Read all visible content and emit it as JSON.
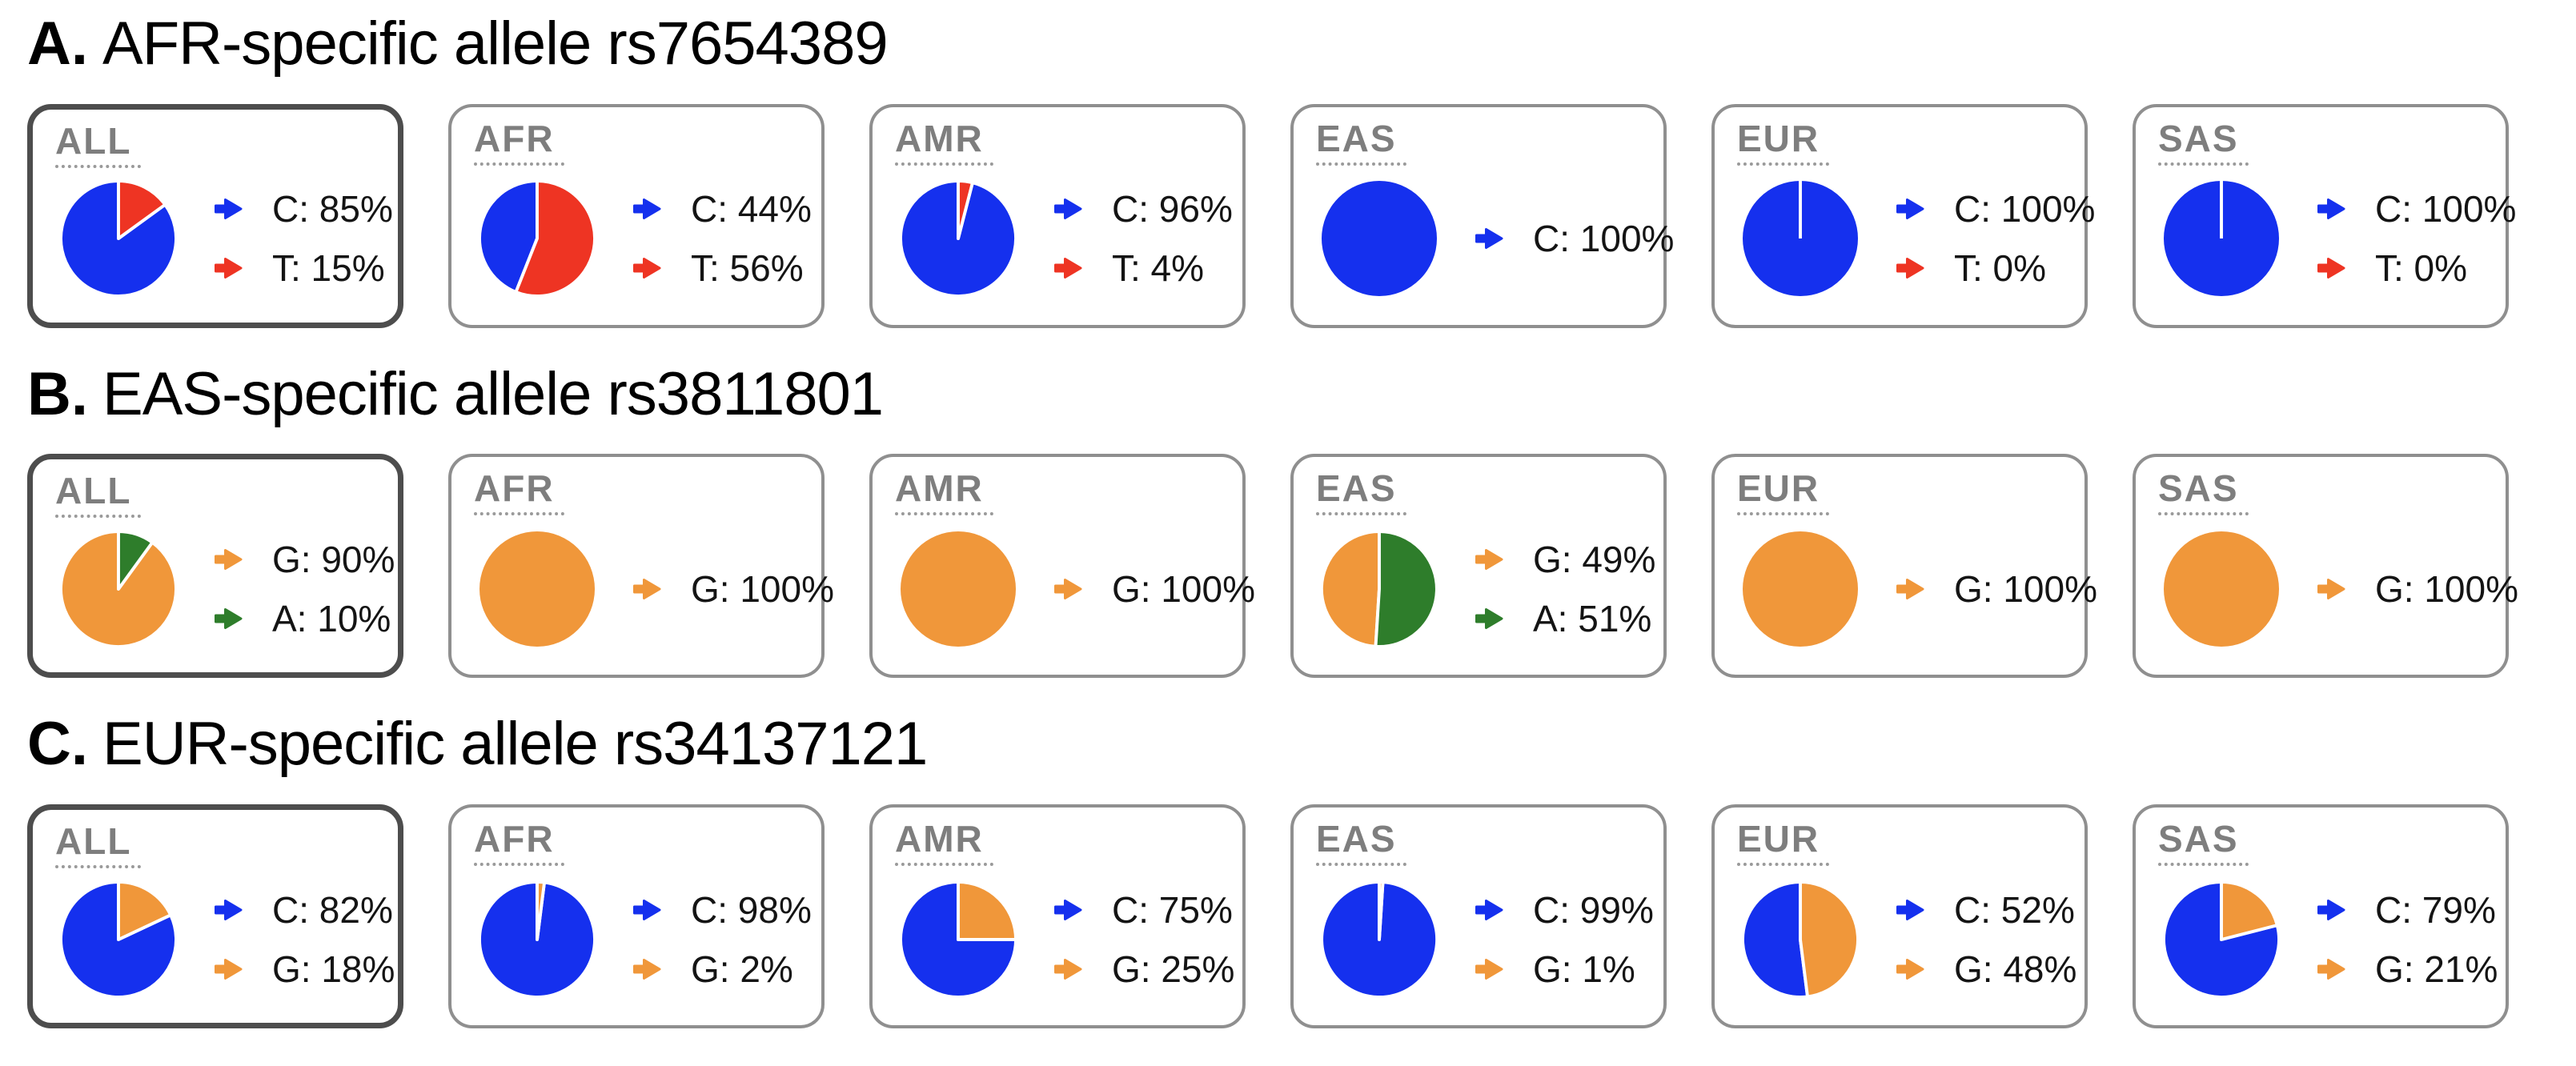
{
  "page": {
    "background": "#ffffff",
    "text_color": "#141414"
  },
  "styles": {
    "population_label_color": "#7e7e7e",
    "card_border_color": "#8f8f8f",
    "highlight_border_color": "#4d4d4d",
    "pie_edge_color": "#ffffff"
  },
  "chart_data": [
    {
      "type": "pie",
      "panel": "A.",
      "title": "AFR-specific allele rs7654389",
      "legend_position": "right",
      "pies": [
        {
          "population": "ALL",
          "highlighted": true,
          "slices": [
            {
              "allele": "C",
              "pct": 85,
              "color": "#1530ee",
              "label": "C: 85%"
            },
            {
              "allele": "T",
              "pct": 15,
              "color": "#ee3423",
              "label": "T: 15%"
            }
          ]
        },
        {
          "population": "AFR",
          "highlighted": false,
          "slices": [
            {
              "allele": "C",
              "pct": 44,
              "color": "#1530ee",
              "label": "C: 44%"
            },
            {
              "allele": "T",
              "pct": 56,
              "color": "#ee3423",
              "label": "T: 56%"
            }
          ]
        },
        {
          "population": "AMR",
          "highlighted": false,
          "slices": [
            {
              "allele": "C",
              "pct": 96,
              "color": "#1530ee",
              "label": "C: 96%"
            },
            {
              "allele": "T",
              "pct": 4,
              "color": "#ee3423",
              "label": "T: 4%"
            }
          ]
        },
        {
          "population": "EAS",
          "highlighted": false,
          "slices": [
            {
              "allele": "C",
              "pct": 100,
              "color": "#1530ee",
              "label": "C: 100%"
            }
          ]
        },
        {
          "population": "EUR",
          "highlighted": false,
          "slices": [
            {
              "allele": "C",
              "pct": 100,
              "color": "#1530ee",
              "label": "C: 100%"
            },
            {
              "allele": "T",
              "pct": 0,
              "color": "#ee3423",
              "label": "T: 0%"
            }
          ]
        },
        {
          "population": "SAS",
          "highlighted": false,
          "slices": [
            {
              "allele": "C",
              "pct": 100,
              "color": "#1530ee",
              "label": "C: 100%"
            },
            {
              "allele": "T",
              "pct": 0,
              "color": "#ee3423",
              "label": "T: 0%"
            }
          ]
        }
      ]
    },
    {
      "type": "pie",
      "panel": "B.",
      "title": "EAS-specific allele rs3811801",
      "legend_position": "right",
      "pies": [
        {
          "population": "ALL",
          "highlighted": true,
          "slices": [
            {
              "allele": "G",
              "pct": 90,
              "color": "#f0973a",
              "label": "G: 90%"
            },
            {
              "allele": "A",
              "pct": 10,
              "color": "#2e7d2b",
              "label": "A: 10%"
            }
          ]
        },
        {
          "population": "AFR",
          "highlighted": false,
          "slices": [
            {
              "allele": "G",
              "pct": 100,
              "color": "#f0973a",
              "label": "G: 100%"
            }
          ]
        },
        {
          "population": "AMR",
          "highlighted": false,
          "slices": [
            {
              "allele": "G",
              "pct": 100,
              "color": "#f0973a",
              "label": "G: 100%"
            }
          ]
        },
        {
          "population": "EAS",
          "highlighted": false,
          "slices": [
            {
              "allele": "G",
              "pct": 49,
              "color": "#f0973a",
              "label": "G: 49%"
            },
            {
              "allele": "A",
              "pct": 51,
              "color": "#2e7d2b",
              "label": "A: 51%"
            }
          ]
        },
        {
          "population": "EUR",
          "highlighted": false,
          "slices": [
            {
              "allele": "G",
              "pct": 100,
              "color": "#f0973a",
              "label": "G: 100%"
            }
          ]
        },
        {
          "population": "SAS",
          "highlighted": false,
          "slices": [
            {
              "allele": "G",
              "pct": 100,
              "color": "#f0973a",
              "label": "G: 100%"
            }
          ]
        }
      ]
    },
    {
      "type": "pie",
      "panel": "C.",
      "title": "EUR-specific allele rs34137121",
      "legend_position": "right",
      "pies": [
        {
          "population": "ALL",
          "highlighted": true,
          "slices": [
            {
              "allele": "C",
              "pct": 82,
              "color": "#1530ee",
              "label": "C: 82%"
            },
            {
              "allele": "G",
              "pct": 18,
              "color": "#f0973a",
              "label": "G: 18%"
            }
          ]
        },
        {
          "population": "AFR",
          "highlighted": false,
          "slices": [
            {
              "allele": "C",
              "pct": 98,
              "color": "#1530ee",
              "label": "C: 98%"
            },
            {
              "allele": "G",
              "pct": 2,
              "color": "#f0973a",
              "label": "G: 2%"
            }
          ]
        },
        {
          "population": "AMR",
          "highlighted": false,
          "slices": [
            {
              "allele": "C",
              "pct": 75,
              "color": "#1530ee",
              "label": "C: 75%"
            },
            {
              "allele": "G",
              "pct": 25,
              "color": "#f0973a",
              "label": "G: 25%"
            }
          ]
        },
        {
          "population": "EAS",
          "highlighted": false,
          "slices": [
            {
              "allele": "C",
              "pct": 99,
              "color": "#1530ee",
              "label": "C: 99%"
            },
            {
              "allele": "G",
              "pct": 1,
              "color": "#f0973a",
              "label": "G: 1%"
            }
          ]
        },
        {
          "population": "EUR",
          "highlighted": false,
          "slices": [
            {
              "allele": "C",
              "pct": 52,
              "color": "#1530ee",
              "label": "C: 52%"
            },
            {
              "allele": "G",
              "pct": 48,
              "color": "#f0973a",
              "label": "G: 48%"
            }
          ]
        },
        {
          "population": "SAS",
          "highlighted": false,
          "slices": [
            {
              "allele": "C",
              "pct": 79,
              "color": "#1530ee",
              "label": "C: 79%"
            },
            {
              "allele": "G",
              "pct": 21,
              "color": "#f0973a",
              "label": "G: 21%"
            }
          ]
        }
      ]
    }
  ]
}
